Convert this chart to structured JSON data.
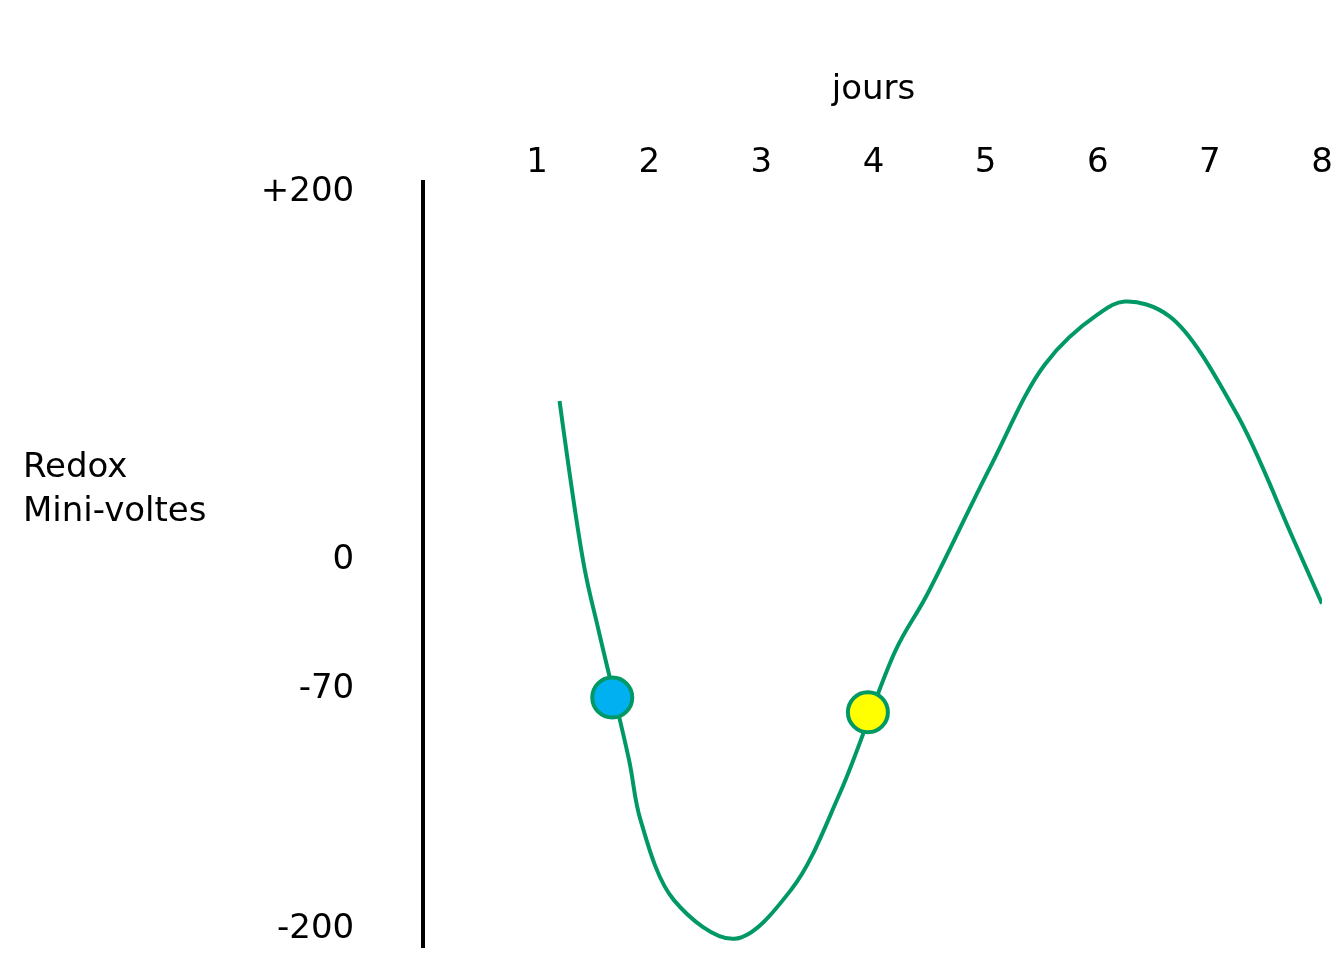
{
  "chart_data": {
    "type": "line",
    "xlabel": "jours",
    "ylabel": "Redox Mini-voltes",
    "xlim": [
      0,
      8
    ],
    "xticks": [
      1,
      2,
      3,
      4,
      5,
      6,
      7,
      8
    ],
    "ylim": [
      -212,
      205
    ],
    "yticks": [
      {
        "value": 200,
        "label": "+200"
      },
      0,
      -70,
      -200
    ],
    "grid": false,
    "tick_labels": "xy",
    "series": [
      {
        "color": "#009966",
        "marker": "none",
        "x": [
          1.2,
          1.42,
          1.55,
          1.82,
          1.92,
          2.22,
          2.76,
          3.27,
          3.7,
          4.2,
          4.47,
          5.04,
          5.53,
          6,
          6.24,
          6.64,
          7.24,
          7.73,
          8
        ],
        "values": [
          85,
          -5,
          -40,
          -110,
          -142,
          -186,
          -207,
          -180,
          -128,
          -50,
          -21,
          49,
          105,
          132,
          139,
          131,
          78,
          12,
          -25
        ]
      },
      {
        "type": "scatter",
        "marker": "circle",
        "color": "#009966",
        "colors": [
          "#00b0f0",
          "#ffff00"
        ],
        "x": [
          1.67,
          3.95
        ],
        "values": [
          -76,
          -84
        ]
      }
    ]
  }
}
